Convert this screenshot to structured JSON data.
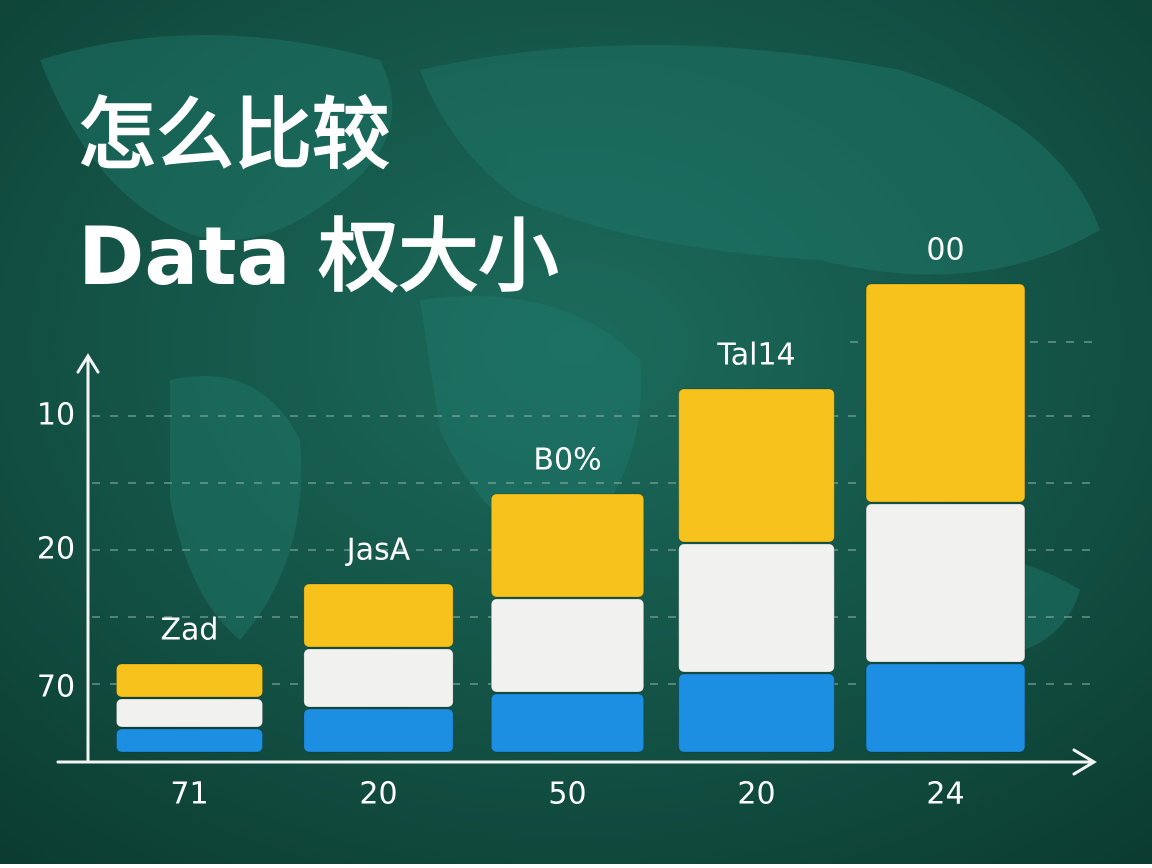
{
  "chart_data": {
    "type": "stacked_bar",
    "title_lines": [
      "怎么比较",
      "Data 权大小"
    ],
    "categories": [
      "71",
      "20",
      "50",
      "20",
      "24"
    ],
    "bar_labels": [
      "Zad",
      "JasA",
      "B0%",
      "Tal14",
      "00"
    ],
    "y_labels": [
      "10",
      "20",
      "70"
    ],
    "series": [
      {
        "color": "#1d8fe3",
        "values": [
          5,
          9,
          12,
          16,
          18
        ]
      },
      {
        "color": "#f1f1ef",
        "values": [
          6,
          12,
          19,
          26,
          32
        ]
      },
      {
        "color": "#f7c21c",
        "values": [
          7,
          13,
          21,
          31,
          44
        ]
      }
    ],
    "ylim": [
      0,
      100
    ]
  }
}
